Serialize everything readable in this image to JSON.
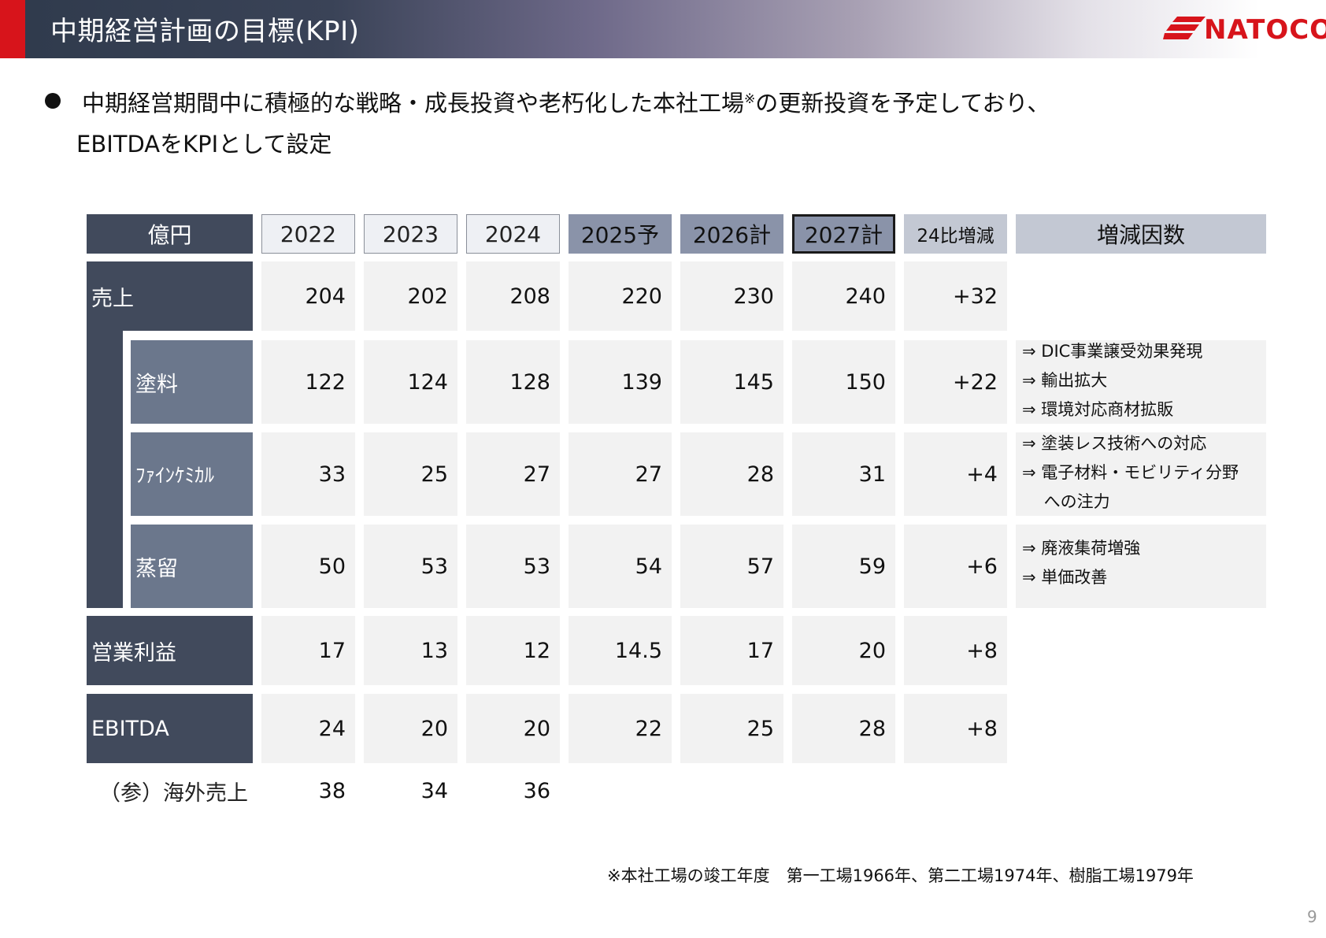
{
  "header": {
    "title": "中期経営計画の目標(KPI)",
    "logo_text": "NATOCO"
  },
  "bullet": {
    "line1_pre": "中期経営期間中に積極的な戦略・成長投資や老朽化した本社工場",
    "line1_mark": "※",
    "line1_post": "の更新投資を予定しており、",
    "line2": "EBITDAをKPIとして設定"
  },
  "table": {
    "corner": "億円",
    "columns": [
      "2022",
      "2023",
      "2024",
      "2025予",
      "2026計",
      "2027計",
      "24比増減",
      "増減因数"
    ],
    "rows": {
      "sales": {
        "label": "売上",
        "values": [
          "204",
          "202",
          "208",
          "220",
          "230",
          "240",
          "+32"
        ]
      },
      "paint": {
        "label": "塗料",
        "values": [
          "122",
          "124",
          "128",
          "139",
          "145",
          "150",
          "+22"
        ],
        "factors": [
          "⇒ DIC事業譲受効果発現",
          "⇒ 輸出拡大",
          "⇒ 環境対応商材拡販"
        ]
      },
      "fine": {
        "label": "ﾌｧｲﾝｹﾐｶﾙ",
        "values": [
          "33",
          "25",
          "27",
          "27",
          "28",
          "31",
          "+4"
        ],
        "factors": [
          "⇒ 塗装レス技術への対応",
          "⇒ 電子材料・モビリティ分野",
          "　 への注力"
        ]
      },
      "distill": {
        "label": "蒸留",
        "values": [
          "50",
          "53",
          "53",
          "54",
          "57",
          "59",
          "+6"
        ],
        "factors": [
          "⇒ 廃液集荷増強",
          "⇒ 単価改善"
        ]
      },
      "op": {
        "label": "営業利益",
        "values": [
          "17",
          "13",
          "12",
          "14.5",
          "17",
          "20",
          "+8"
        ]
      },
      "ebitda": {
        "label": "EBITDA",
        "values": [
          "24",
          "20",
          "20",
          "22",
          "25",
          "28",
          "+8"
        ]
      },
      "overseas": {
        "label": "（参）海外売上",
        "values": [
          "38",
          "34",
          "36"
        ]
      }
    }
  },
  "footnote": "※本社工場の竣工年度　第一工場1966年、第二工場1974年、樹脂工場1979年",
  "page_number": "9",
  "colors": {
    "accent_red": "#d7141b",
    "dark_navy": "#414a5c",
    "mid_slate": "#6b778c"
  }
}
